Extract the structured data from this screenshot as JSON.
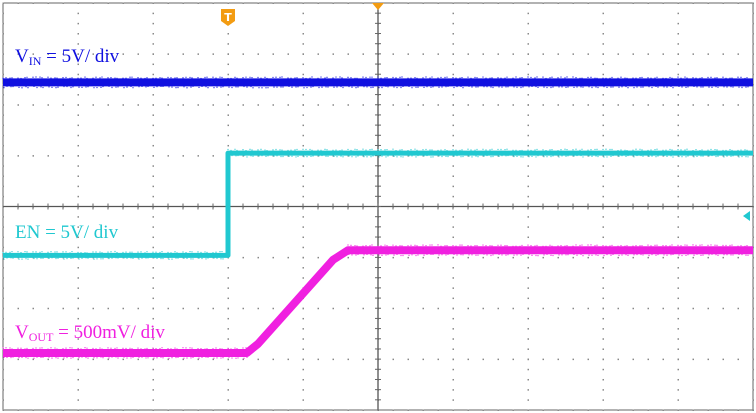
{
  "chart_data": {
    "type": "line",
    "title": "",
    "xlabel": "",
    "ylabel": "",
    "x_divisions": 10,
    "y_divisions": 8,
    "xlim": [
      0,
      10
    ],
    "ylim": [
      0,
      8
    ],
    "grid": true,
    "trigger_marker": "T",
    "series": [
      {
        "name": "VIN = 5V/ div",
        "label_main": "V",
        "label_sub": "IN",
        "label_rest": " = 5V/ div",
        "color": "#1010e0",
        "x": [
          0,
          10
        ],
        "y": [
          6.44,
          6.44
        ]
      },
      {
        "name": "EN = 5V/ div",
        "label_main": "EN = 5V/ div",
        "label_sub": "",
        "label_rest": "",
        "color": "#20c8d0",
        "x": [
          0,
          3.0,
          3.0,
          10
        ],
        "y": [
          3.04,
          3.04,
          5.05,
          5.05
        ]
      },
      {
        "name": "VOUT = 500mV/ div",
        "label_main": "V",
        "label_sub": "OUT",
        "label_rest": " = 500mV/ div",
        "color": "#f020e0",
        "x": [
          0,
          3.25,
          3.4,
          4.4,
          4.6,
          10
        ],
        "y": [
          1.12,
          1.12,
          1.3,
          2.95,
          3.14,
          3.14
        ]
      }
    ]
  },
  "colors": {
    "grid": "#555555",
    "trigger": "#f39c12"
  }
}
